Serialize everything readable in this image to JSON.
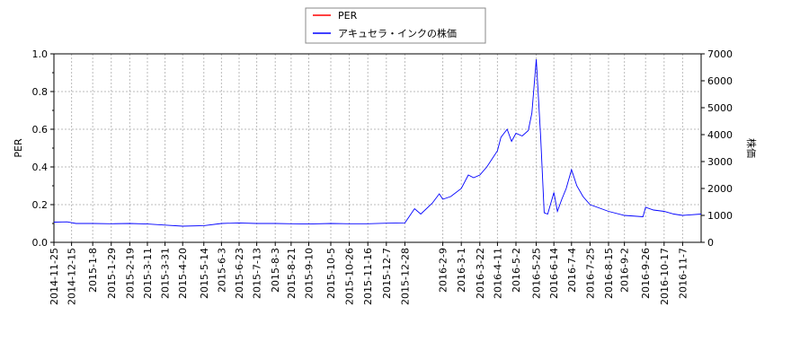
{
  "chart_data": {
    "type": "line",
    "legend_placement": "top-center",
    "grid": true,
    "left_axis": {
      "label": "PER",
      "range": [
        0,
        1.0
      ],
      "ticks": [
        "0.0",
        "0.2",
        "0.4",
        "0.6",
        "0.8",
        "1.0"
      ]
    },
    "right_axis": {
      "label": "株価",
      "range": [
        0,
        7000
      ],
      "ticks": [
        "0",
        "1000",
        "2000",
        "3000",
        "4000",
        "5000",
        "6000",
        "7000"
      ]
    },
    "x_range": [
      "2014-11-25",
      "2016-11-28"
    ],
    "x_ticks": [
      "2014-11-25",
      "2014-12-15",
      "2015-1-8",
      "2015-1-29",
      "2015-2-19",
      "2015-3-11",
      "2015-3-31",
      "2015-4-20",
      "2015-5-14",
      "2015-6-3",
      "2015-6-23",
      "2015-7-13",
      "2015-8-3",
      "2015-8-21",
      "2015-9-10",
      "2015-10-5",
      "2015-10-26",
      "2015-11-16",
      "2015-12-7",
      "2015-12-28",
      "2016-2-9",
      "2016-3-1",
      "2016-3-22",
      "2016-4-11",
      "2016-5-2",
      "2016-5-25",
      "2016-6-14",
      "2016-7-4",
      "2016-7-25",
      "2016-8-15",
      "2016-9-2",
      "2016-9-26",
      "2016-10-17",
      "2016-11-7"
    ],
    "series": [
      {
        "name": "PER",
        "color": "#ff0000",
        "axis": "left",
        "values": []
      },
      {
        "name": "アキュセラ・インクの株価",
        "color": "#0000ff",
        "axis": "right",
        "points": [
          [
            "2014-11-25",
            750
          ],
          [
            "2014-12-10",
            760
          ],
          [
            "2014-12-20",
            700
          ],
          [
            "2015-1-8",
            700
          ],
          [
            "2015-1-29",
            690
          ],
          [
            "2015-2-19",
            700
          ],
          [
            "2015-3-11",
            680
          ],
          [
            "2015-3-31",
            640
          ],
          [
            "2015-4-20",
            600
          ],
          [
            "2015-5-14",
            620
          ],
          [
            "2015-6-3",
            700
          ],
          [
            "2015-6-23",
            720
          ],
          [
            "2015-7-13",
            700
          ],
          [
            "2015-8-3",
            700
          ],
          [
            "2015-8-21",
            690
          ],
          [
            "2015-9-10",
            680
          ],
          [
            "2015-10-5",
            700
          ],
          [
            "2015-10-26",
            690
          ],
          [
            "2015-11-16",
            690
          ],
          [
            "2015-12-7",
            710
          ],
          [
            "2015-12-28",
            720
          ],
          [
            "2016-1-8",
            1250
          ],
          [
            "2016-1-15",
            1050
          ],
          [
            "2016-1-28",
            1450
          ],
          [
            "2016-2-5",
            1800
          ],
          [
            "2016-2-9",
            1600
          ],
          [
            "2016-2-18",
            1700
          ],
          [
            "2016-3-1",
            2000
          ],
          [
            "2016-3-9",
            2500
          ],
          [
            "2016-3-15",
            2400
          ],
          [
            "2016-3-22",
            2500
          ],
          [
            "2016-3-30",
            2800
          ],
          [
            "2016-4-11",
            3400
          ],
          [
            "2016-4-15",
            3900
          ],
          [
            "2016-4-22",
            4200
          ],
          [
            "2016-4-27",
            3750
          ],
          [
            "2016-5-2",
            4050
          ],
          [
            "2016-5-9",
            3950
          ],
          [
            "2016-5-16",
            4150
          ],
          [
            "2016-5-20",
            4800
          ],
          [
            "2016-5-25",
            6800
          ],
          [
            "2016-5-30",
            3900
          ],
          [
            "2016-6-3",
            1100
          ],
          [
            "2016-6-7",
            1050
          ],
          [
            "2016-6-14",
            1850
          ],
          [
            "2016-6-18",
            1150
          ],
          [
            "2016-6-23",
            1600
          ],
          [
            "2016-6-28",
            2000
          ],
          [
            "2016-7-4",
            2700
          ],
          [
            "2016-7-10",
            2100
          ],
          [
            "2016-7-17",
            1700
          ],
          [
            "2016-7-25",
            1400
          ],
          [
            "2016-8-15",
            1150
          ],
          [
            "2016-9-2",
            1000
          ],
          [
            "2016-9-23",
            950
          ],
          [
            "2016-9-26",
            1300
          ],
          [
            "2016-10-5",
            1200
          ],
          [
            "2016-10-17",
            1150
          ],
          [
            "2016-10-28",
            1050
          ],
          [
            "2016-11-7",
            1000
          ],
          [
            "2016-11-28",
            1050
          ]
        ]
      }
    ]
  }
}
